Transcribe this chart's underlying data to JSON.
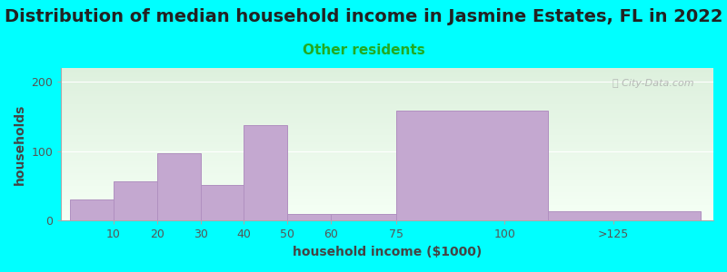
{
  "title": "Distribution of median household income in Jasmine Estates, FL in 2022",
  "subtitle": "Other residents",
  "xlabel": "household income ($1000)",
  "ylabel": "households",
  "background_color": "#00FFFF",
  "bar_color": "#c4a8d0",
  "bar_edge_color": "#b090c0",
  "tick_positions": [
    10,
    20,
    30,
    40,
    50,
    60,
    75,
    100,
    125
  ],
  "tick_labels": [
    "10",
    "20",
    "30",
    "40",
    "50",
    "60",
    "75",
    "100",
    ">125"
  ],
  "bar_lefts": [
    0,
    10,
    20,
    30,
    40,
    50,
    60,
    75,
    110
  ],
  "bar_rights": [
    10,
    20,
    30,
    40,
    50,
    60,
    75,
    110,
    145
  ],
  "values": [
    30,
    57,
    97,
    52,
    138,
    10,
    10,
    158,
    14
  ],
  "xlim": [
    -2,
    148
  ],
  "ylim": [
    0,
    220
  ],
  "yticks": [
    0,
    100,
    200
  ],
  "title_fontsize": 14,
  "subtitle_fontsize": 11,
  "subtitle_color": "#22aa22",
  "axis_label_fontsize": 10,
  "tick_fontsize": 9,
  "watermark": "ⓘ City-Data.com",
  "watermark_color": "#aaaaaa",
  "grad_top_color": "#ddf0dd",
  "grad_bottom_color": "#f5fff5"
}
